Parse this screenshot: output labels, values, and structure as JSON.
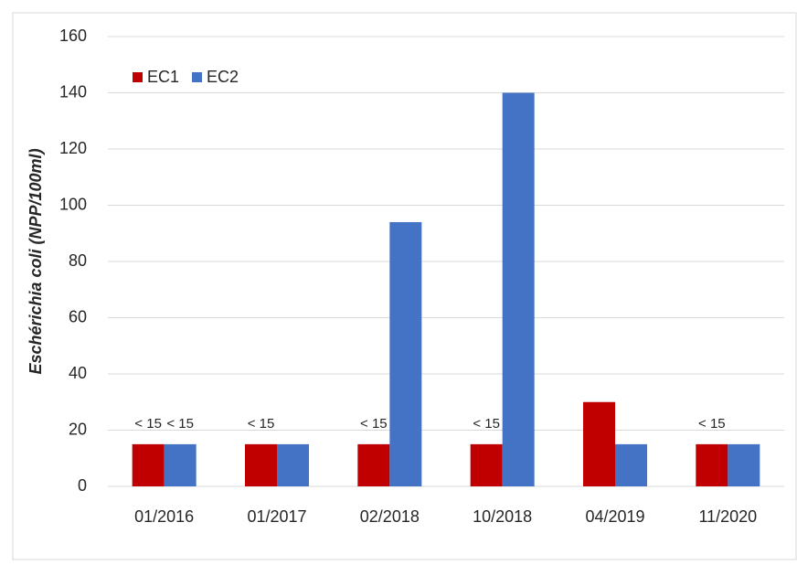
{
  "chart_data": {
    "type": "bar",
    "y_label": "Eschérichia coli (NPP/100ml)",
    "categories": [
      "01/2016",
      "01/2017",
      "02/2018",
      "10/2018",
      "04/2019",
      "11/2020"
    ],
    "series": [
      {
        "name": "EC1",
        "color": "#c00000",
        "values": [
          15,
          15,
          15,
          15,
          30,
          15
        ],
        "value_labels": [
          "< 15",
          "< 15",
          "< 15",
          "< 15",
          null,
          "< 15"
        ]
      },
      {
        "name": "EC2",
        "color": "#4472c4",
        "values": [
          15,
          15,
          94,
          140,
          15,
          15
        ],
        "value_labels": [
          "< 15",
          null,
          null,
          null,
          null,
          null
        ]
      }
    ],
    "ylim": [
      0,
      160
    ],
    "yticks": [
      0,
      20,
      40,
      60,
      80,
      100,
      120,
      140,
      160
    ],
    "grid": true,
    "legend": "top-left"
  }
}
